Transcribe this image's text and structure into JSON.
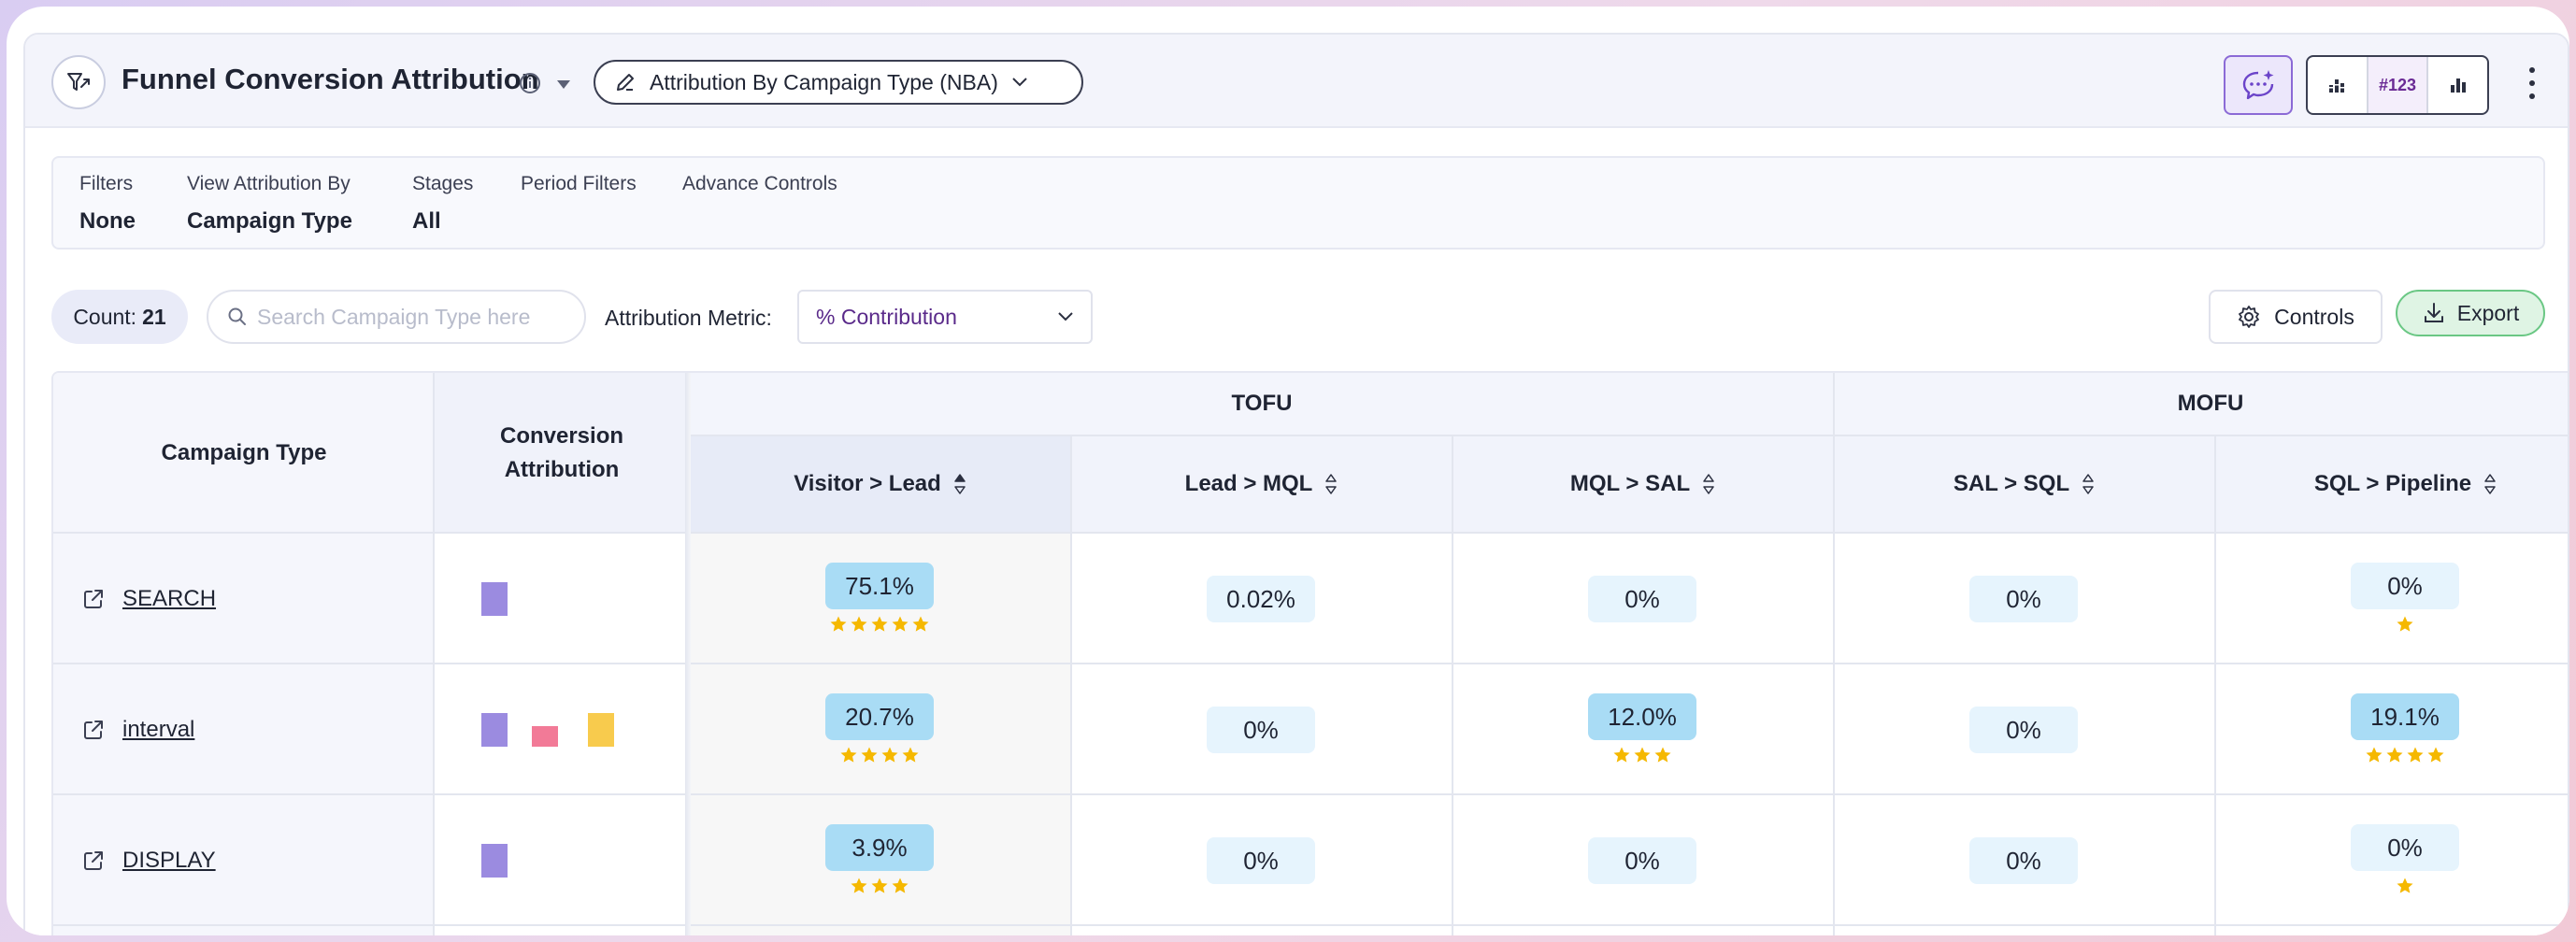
{
  "header": {
    "title": "Funnel Conversion Attribution",
    "view_name": "Attribution By Campaign Type (NBA)",
    "number_toggle_label": "#123"
  },
  "filters": [
    {
      "label": "Filters",
      "value": "None"
    },
    {
      "label": "View Attribution By",
      "value": "Campaign Type"
    },
    {
      "label": "Stages",
      "value": "All"
    },
    {
      "label": "Period Filters",
      "value": ""
    },
    {
      "label": "Advance Controls",
      "value": ""
    }
  ],
  "toolbar": {
    "count_label": "Count:",
    "count_value": "21",
    "search_placeholder": "Search Campaign Type here",
    "metric_label": "Attribution Metric:",
    "metric_value": "% Contribution",
    "controls_label": "Controls",
    "export_label": "Export"
  },
  "table": {
    "col_campaign": "Campaign Type",
    "col_conversion_line1": "Conversion",
    "col_conversion_line2": "Attribution",
    "groups": [
      {
        "label": "TOFU"
      },
      {
        "label": "MOFU"
      }
    ],
    "stages": [
      "Visitor > Lead",
      "Lead > MQL",
      "MQL > SAL",
      "SAL > SQL",
      "SQL > Pipeline"
    ],
    "rows": [
      {
        "name": "SEARCH",
        "bars": [
          "#9b8be0"
        ],
        "cells": [
          {
            "value": "75.1%",
            "stars": 5,
            "level": "hi"
          },
          {
            "value": "0.02%",
            "stars": 0,
            "level": "lo"
          },
          {
            "value": "0%",
            "stars": 0,
            "level": "lo"
          },
          {
            "value": "0%",
            "stars": 0,
            "level": "lo"
          },
          {
            "value": "0%",
            "stars": 1,
            "level": "lo"
          }
        ]
      },
      {
        "name": "interval",
        "bars": [
          "#9b8be0",
          "#f27a97",
          "#f8cb4d"
        ],
        "cells": [
          {
            "value": "20.7%",
            "stars": 4,
            "level": "hi"
          },
          {
            "value": "0%",
            "stars": 0,
            "level": "lo"
          },
          {
            "value": "12.0%",
            "stars": 3,
            "level": "hi"
          },
          {
            "value": "0%",
            "stars": 0,
            "level": "lo"
          },
          {
            "value": "19.1%",
            "stars": 4,
            "level": "hi"
          }
        ]
      },
      {
        "name": "DISPLAY",
        "bars": [
          "#9b8be0"
        ],
        "cells": [
          {
            "value": "3.9%",
            "stars": 3,
            "level": "hi"
          },
          {
            "value": "0%",
            "stars": 0,
            "level": "lo"
          },
          {
            "value": "0%",
            "stars": 0,
            "level": "lo"
          },
          {
            "value": "0%",
            "stars": 0,
            "level": "lo"
          },
          {
            "value": "0%",
            "stars": 1,
            "level": "lo"
          }
        ]
      }
    ]
  },
  "colors": {
    "accent_purple": "#8b6ad6",
    "badge_high": "#a9dcf5",
    "badge_low": "#e6f4fd",
    "star": "#f5b800",
    "export_green": "#6ac784"
  }
}
